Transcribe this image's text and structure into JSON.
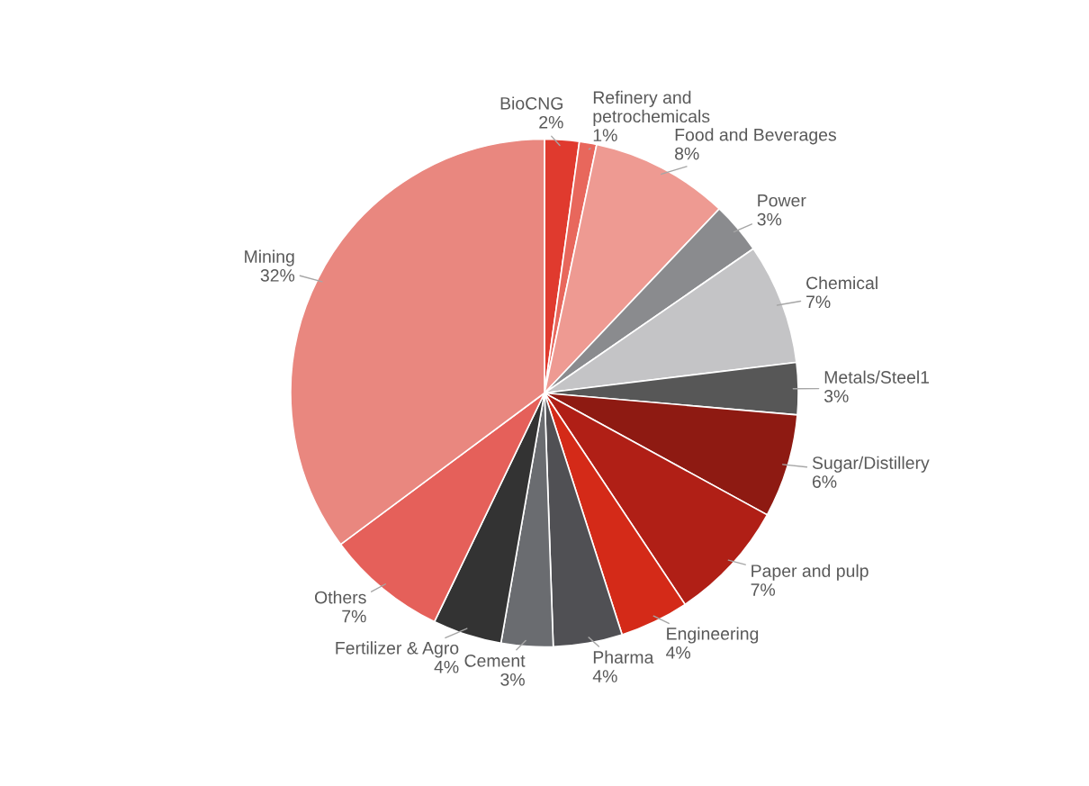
{
  "chart_data": {
    "type": "pie",
    "categories": [
      "BioCNG",
      "Refinery and petrochemicals",
      "Food and Beverages",
      "Power",
      "Chemical",
      "Metals/Steel1",
      "Sugar/Distillery",
      "Paper and pulp",
      "Engineering",
      "Pharma",
      "Cement",
      "Fertilizer & Agro",
      "Others",
      "Mining"
    ],
    "values": [
      2,
      1,
      8,
      3,
      7,
      3,
      6,
      7,
      4,
      4,
      3,
      4,
      7,
      32
    ],
    "value_labels": [
      "2%",
      "1%",
      "8%",
      "3%",
      "7%",
      "3%",
      "6%",
      "7%",
      "4%",
      "4%",
      "3%",
      "4%",
      "7%",
      "32%"
    ],
    "colors": [
      "#e03a2e",
      "#e8675c",
      "#ee9a92",
      "#8a8b8e",
      "#c4c4c6",
      "#575757",
      "#8e1a12",
      "#b01f16",
      "#d42a18",
      "#505054",
      "#6a6c70",
      "#333333",
      "#e5605a",
      "#e9877f"
    ],
    "legend": false
  }
}
